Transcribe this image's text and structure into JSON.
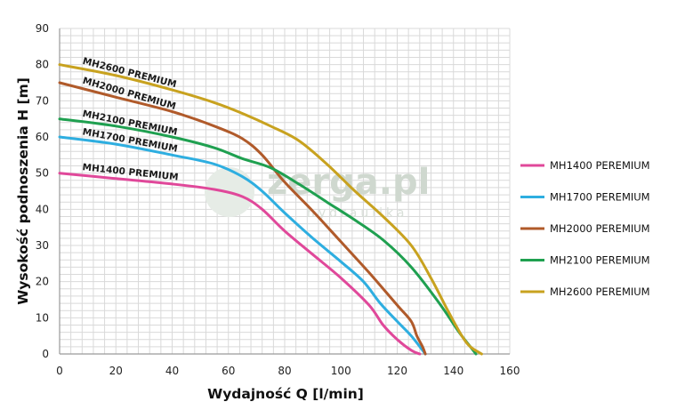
{
  "watermark": {
    "text": "zerga.pl",
    "subtext": "hydraulika"
  },
  "chart_data": {
    "type": "line",
    "xlabel": "Wydajność Q [l/min]",
    "ylabel": "Wysokość podnoszenia H [m]",
    "xlim": [
      0,
      160
    ],
    "ylim": [
      0,
      90
    ],
    "x_ticks": [
      0,
      20,
      40,
      60,
      80,
      100,
      120,
      140,
      160
    ],
    "y_ticks": [
      0,
      10,
      20,
      30,
      40,
      50,
      60,
      70,
      80,
      90
    ],
    "grid": true,
    "legend_position": "right",
    "series": [
      {
        "name": "MH1400 PEREMIUM",
        "curve_label": "MH1400 PREMIUM",
        "color": "#e0489a",
        "points": [
          [
            0,
            50
          ],
          [
            20,
            48.5
          ],
          [
            40,
            47
          ],
          [
            55,
            45.5
          ],
          [
            65,
            43.5
          ],
          [
            72,
            40
          ],
          [
            80,
            34
          ],
          [
            90,
            27.5
          ],
          [
            100,
            21
          ],
          [
            110,
            13.5
          ],
          [
            115,
            8
          ],
          [
            120,
            4
          ],
          [
            125,
            1
          ],
          [
            128,
            0
          ]
        ]
      },
      {
        "name": "MH1700 PEREMIUM",
        "curve_label": "MH1700 PREMIUM",
        "color": "#2eaee0",
        "points": [
          [
            0,
            60
          ],
          [
            20,
            58
          ],
          [
            40,
            55
          ],
          [
            55,
            52.5
          ],
          [
            65,
            49
          ],
          [
            72,
            45
          ],
          [
            80,
            39
          ],
          [
            90,
            32
          ],
          [
            100,
            25.5
          ],
          [
            108,
            20
          ],
          [
            114,
            14
          ],
          [
            120,
            9
          ],
          [
            125,
            5
          ],
          [
            130,
            0
          ]
        ]
      },
      {
        "name": "MH2000 PEREMIUM",
        "curve_label": "MH2000 PREMIUM",
        "color": "#b05a2a",
        "points": [
          [
            0,
            75
          ],
          [
            20,
            71
          ],
          [
            40,
            67
          ],
          [
            55,
            63
          ],
          [
            65,
            59.5
          ],
          [
            72,
            55
          ],
          [
            80,
            47.5
          ],
          [
            90,
            39.5
          ],
          [
            100,
            31
          ],
          [
            110,
            22.5
          ],
          [
            120,
            13.5
          ],
          [
            125,
            9
          ],
          [
            127,
            5
          ],
          [
            129,
            2
          ],
          [
            130,
            0
          ]
        ]
      },
      {
        "name": "MH2100 PEREMIUM",
        "curve_label": "MH2100 PREMIUM",
        "color": "#1fa050",
        "points": [
          [
            0,
            65
          ],
          [
            20,
            63
          ],
          [
            40,
            60
          ],
          [
            55,
            57
          ],
          [
            65,
            54
          ],
          [
            75,
            51.5
          ],
          [
            85,
            47
          ],
          [
            95,
            42
          ],
          [
            105,
            37
          ],
          [
            115,
            31.5
          ],
          [
            125,
            24
          ],
          [
            135,
            14
          ],
          [
            142,
            6
          ],
          [
            146,
            2
          ],
          [
            148,
            0
          ]
        ]
      },
      {
        "name": "MH2600 PEREMIUM",
        "curve_label": "MH2600 PREMIUM",
        "color": "#c8a21f",
        "points": [
          [
            0,
            80
          ],
          [
            20,
            77
          ],
          [
            40,
            73
          ],
          [
            55,
            69.5
          ],
          [
            65,
            66.5
          ],
          [
            75,
            63
          ],
          [
            85,
            59
          ],
          [
            95,
            52.5
          ],
          [
            105,
            45
          ],
          [
            115,
            38
          ],
          [
            125,
            30
          ],
          [
            132,
            21
          ],
          [
            138,
            12
          ],
          [
            143,
            5
          ],
          [
            146,
            2
          ],
          [
            150,
            0
          ]
        ]
      }
    ]
  }
}
